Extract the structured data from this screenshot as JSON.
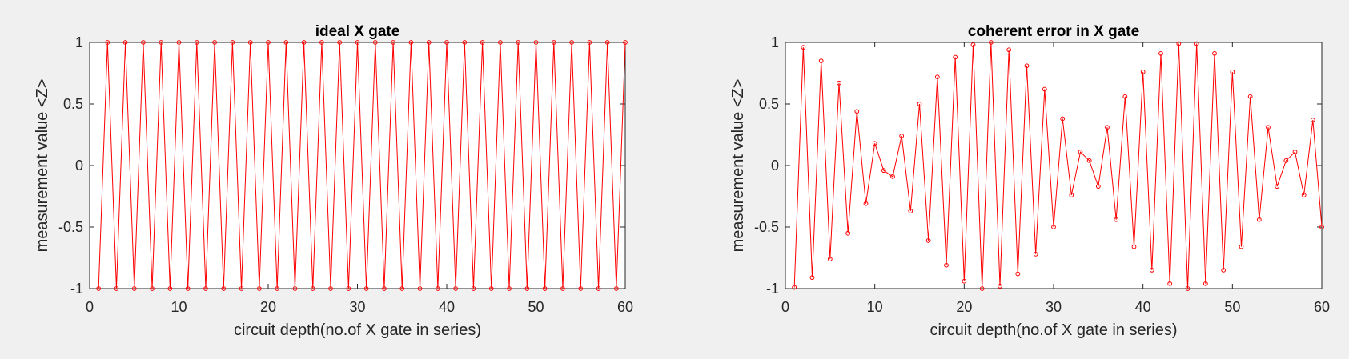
{
  "chart_data": [
    {
      "type": "line",
      "title": "ideal X gate",
      "xlabel": "circuit depth(no.of X gate in series)",
      "ylabel": "measurement value <Z>",
      "xlim": [
        0,
        60
      ],
      "ylim": [
        -1,
        1
      ],
      "xticks": [
        "0",
        "10",
        "20",
        "30",
        "40",
        "50",
        "60"
      ],
      "yticks": [
        "1",
        "0.5",
        "0",
        "-0.5",
        "-1"
      ],
      "grid": false,
      "marker": "circle",
      "color": "#ff0000",
      "x": [
        1,
        2,
        3,
        4,
        5,
        6,
        7,
        8,
        9,
        10,
        11,
        12,
        13,
        14,
        15,
        16,
        17,
        18,
        19,
        20,
        21,
        22,
        23,
        24,
        25,
        26,
        27,
        28,
        29,
        30,
        31,
        32,
        33,
        34,
        35,
        36,
        37,
        38,
        39,
        40,
        41,
        42,
        43,
        44,
        45,
        46,
        47,
        48,
        49,
        50,
        51,
        52,
        53,
        54,
        55,
        56,
        57,
        58,
        59,
        60
      ],
      "y": [
        -1,
        1,
        -1,
        1,
        -1,
        1,
        -1,
        1,
        -1,
        1,
        -1,
        1,
        -1,
        1,
        -1,
        1,
        -1,
        1,
        -1,
        1,
        -1,
        1,
        -1,
        1,
        -1,
        1,
        -1,
        1,
        -1,
        1,
        -1,
        1,
        -1,
        1,
        -1,
        1,
        -1,
        1,
        -1,
        1,
        -1,
        1,
        -1,
        1,
        -1,
        1,
        -1,
        1,
        -1,
        1,
        -1,
        1,
        -1,
        1,
        -1,
        1,
        -1,
        1,
        -1,
        1
      ]
    },
    {
      "type": "line",
      "title": "coherent error in X gate",
      "xlabel": "circuit depth(no.of X gate in series)",
      "ylabel": "measurement value <Z>",
      "xlim": [
        0,
        60
      ],
      "ylim": [
        -1,
        1
      ],
      "xticks": [
        "0",
        "10",
        "20",
        "30",
        "40",
        "50",
        "60"
      ],
      "yticks": [
        "1",
        "0.5",
        "0",
        "-0.5",
        "-1"
      ],
      "grid": false,
      "marker": "circle",
      "color": "#ff0000",
      "x": [
        1,
        2,
        3,
        4,
        5,
        6,
        7,
        8,
        9,
        10,
        11,
        12,
        13,
        14,
        15,
        16,
        17,
        18,
        19,
        20,
        21,
        22,
        23,
        24,
        25,
        26,
        27,
        28,
        29,
        30,
        31,
        32,
        33,
        34,
        35,
        36,
        37,
        38,
        39,
        40,
        41,
        42,
        43,
        44,
        45,
        46,
        47,
        48,
        49,
        50,
        51,
        52,
        53,
        54,
        55,
        56,
        57,
        58,
        59,
        60
      ],
      "y": [
        -0.99,
        0.96,
        -0.91,
        0.85,
        -0.76,
        0.67,
        -0.55,
        0.44,
        -0.31,
        0.18,
        -0.04,
        -0.09,
        0.24,
        -0.37,
        0.5,
        -0.61,
        0.72,
        -0.81,
        0.88,
        -0.94,
        0.98,
        -1.0,
        1.0,
        -0.98,
        0.94,
        -0.88,
        0.81,
        -0.72,
        0.62,
        -0.5,
        0.38,
        -0.24,
        0.11,
        0.04,
        -0.17,
        0.31,
        -0.44,
        0.56,
        -0.66,
        0.76,
        -0.85,
        0.91,
        -0.96,
        0.99,
        -1.0,
        0.99,
        -0.96,
        0.91,
        -0.85,
        0.76,
        -0.66,
        0.56,
        -0.44,
        0.31,
        -0.17,
        0.04,
        0.11,
        -0.24,
        0.37,
        -0.5
      ]
    }
  ]
}
